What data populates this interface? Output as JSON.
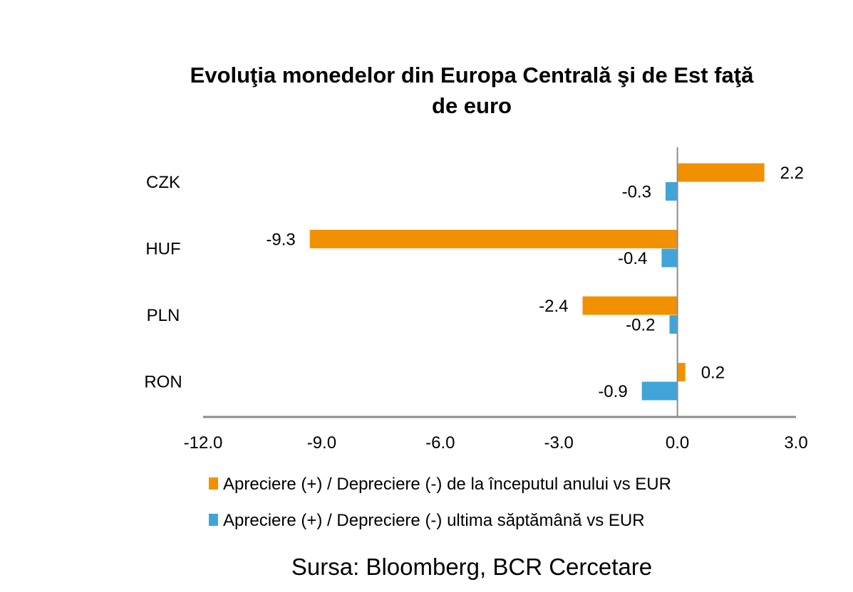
{
  "chart_data": {
    "type": "bar",
    "orientation": "horizontal",
    "title": "Evoluţia monedelor din Europa Centrală şi de Est faţă de euro",
    "title_lines": [
      "Evoluţia monedelor din Europa Centrală şi de Est faţă",
      "de euro"
    ],
    "categories": [
      "CZK",
      "HUF",
      "PLN",
      "RON"
    ],
    "series": [
      {
        "name": "Apreciere (+) / Depreciere (-) de la începutul anului vs EUR",
        "values": [
          2.2,
          -9.3,
          -2.4,
          0.2
        ],
        "color": "#F29100"
      },
      {
        "name": "Apreciere (+) / Depreciere (-) ultima săptămână vs EUR",
        "values": [
          -0.3,
          -0.4,
          -0.2,
          -0.9
        ],
        "color": "#41A4D8"
      }
    ],
    "xlim": [
      -12,
      3
    ],
    "xticks": [
      "-12.0",
      "-9.0",
      "-6.0",
      "-3.0",
      "0.0",
      "3.0"
    ],
    "xtick_values": [
      -12,
      -9,
      -6,
      -3,
      0,
      3
    ],
    "grid": false,
    "legend_position": "bottom",
    "data_labels": true,
    "xlabel": "",
    "ylabel": ""
  },
  "source": "Sursa: Bloomberg, BCR Cercetare"
}
